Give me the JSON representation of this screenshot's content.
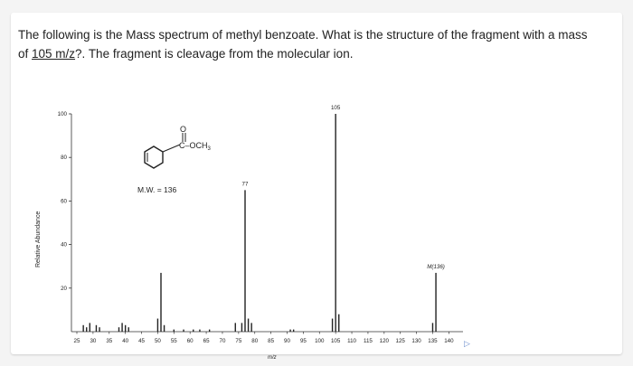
{
  "question": {
    "line1": "The following is the Mass spectrum of methyl benzoate. What is the structure of the fragment with a mass",
    "line2_pre": "of ",
    "line2_underlined": "105 m/z",
    "line2_post": "?. The fragment is cleavage from the molecular ion."
  },
  "molecule": {
    "carbonyl_o": "O",
    "substituent": "C–OCH",
    "substituent_sub": "3",
    "mw_label": "M.W. = 136"
  },
  "chart_data": {
    "type": "bar",
    "xlabel": "m/z",
    "ylabel": "Relative Abundance",
    "xlim": [
      23,
      145
    ],
    "ylim": [
      0,
      100
    ],
    "x_ticks": [
      25,
      30,
      35,
      40,
      45,
      50,
      55,
      60,
      65,
      70,
      75,
      80,
      85,
      90,
      95,
      100,
      105,
      110,
      115,
      120,
      125,
      130,
      135,
      140
    ],
    "y_ticks": [
      20,
      40,
      60,
      80,
      100
    ],
    "x": [
      27,
      28,
      29,
      31,
      32,
      38,
      39,
      40,
      41,
      50,
      51,
      52,
      55,
      58,
      61,
      63,
      66,
      74,
      76,
      77,
      78,
      79,
      91,
      92,
      104,
      105,
      106,
      135,
      136
    ],
    "y": [
      3,
      2,
      4,
      3,
      2,
      2,
      4,
      3,
      2,
      6,
      27,
      3,
      1,
      1,
      1,
      1,
      1,
      4,
      4,
      65,
      6,
      4,
      1,
      1,
      6,
      100,
      8,
      4,
      27
    ],
    "peak_labels": [
      {
        "x": 77,
        "y": 65,
        "text": "77"
      },
      {
        "x": 105,
        "y": 100,
        "text": "105"
      },
      {
        "x": 136,
        "y": 27,
        "text": "M(136)"
      }
    ]
  }
}
